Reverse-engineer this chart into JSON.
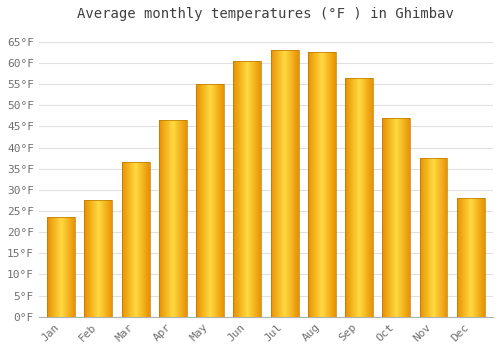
{
  "title": "Average monthly temperatures (°F ) in Ghimbav",
  "months": [
    "Jan",
    "Feb",
    "Mar",
    "Apr",
    "May",
    "Jun",
    "Jul",
    "Aug",
    "Sep",
    "Oct",
    "Nov",
    "Dec"
  ],
  "values": [
    23.5,
    27.5,
    36.5,
    46.5,
    55.0,
    60.5,
    63.0,
    62.5,
    56.5,
    47.0,
    37.5,
    28.0
  ],
  "bar_color_center": "#FFD966",
  "bar_color_edge": "#E89000",
  "bar_edge_color": "#B87800",
  "background_color": "#ffffff",
  "grid_color": "#e0e0e0",
  "tick_label_color": "#707070",
  "title_color": "#404040",
  "ylim": [
    0,
    68
  ],
  "yticks": [
    0,
    5,
    10,
    15,
    20,
    25,
    30,
    35,
    40,
    45,
    50,
    55,
    60,
    65
  ],
  "bar_width": 0.75,
  "title_fontsize": 10,
  "tick_fontsize": 8
}
